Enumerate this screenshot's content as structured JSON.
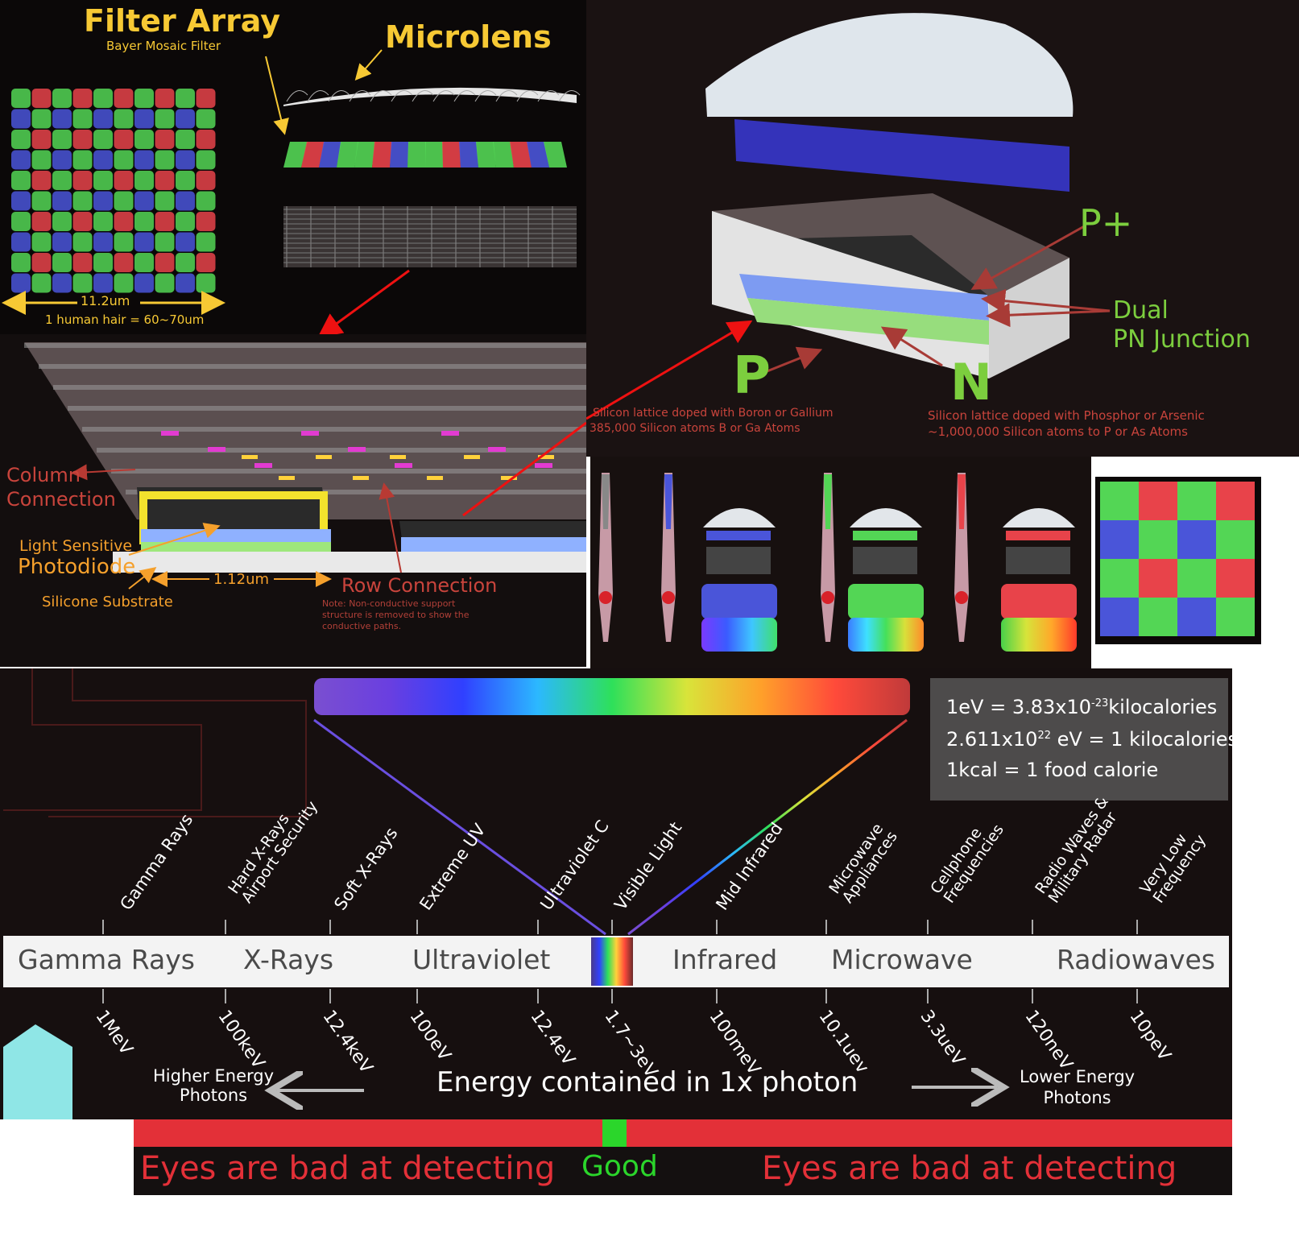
{
  "colors": {
    "red": "#e8434a",
    "green": "#53d655",
    "blue": "#4a55d9",
    "gold": "#f7c934",
    "orange": "#f5a02c",
    "dark_red_text": "#c9443c",
    "bar_red": "#e33038",
    "bar_green": "#2bd62b"
  },
  "filter_panel": {
    "title": "Filter Array",
    "subtitle": "Bayer Mosaic Filter",
    "microlens": "Microlens",
    "size": "11.2um",
    "hair_note": "1 human hair = 60~70um"
  },
  "pixel_panel": {
    "column": "Column\nConnection",
    "light_sensitive": "Light Sensitive",
    "photodiode": "Photodiode",
    "substrate": "Silicone Substrate",
    "pitch": "1.12um",
    "row": "Row Connection",
    "note": "Note: Non-conductive support\nstructure is removed to show the\nconductive paths."
  },
  "junction_panel": {
    "p_plus": "P+",
    "dual": "Dual\nPN Junction",
    "p": "P",
    "n": "N",
    "p_caption_1": "Silicon lattice doped with Boron or Gallium",
    "p_caption_2": "385,000 Silicon atoms B or Ga Atoms",
    "n_caption_1": "Silicon lattice doped with Phosphor or Arsenic",
    "n_caption_2": "~1,000,000 Silicon atoms to P or As Atoms"
  },
  "spectrum": {
    "conversions": [
      "1eV = 3.83x10",
      "-23",
      "kilocalories",
      "2.611x10",
      "22",
      " eV = 1 kilocalories",
      "1kcal = 1 food calorie"
    ],
    "top_labels": [
      {
        "lines": [
          "Gamma Rays"
        ]
      },
      {
        "lines": [
          "Hard X-Rays",
          "Airport Security"
        ]
      },
      {
        "lines": [
          "Soft X-Rays"
        ]
      },
      {
        "lines": [
          "Extreme UV"
        ]
      },
      {
        "lines": [
          "Ultraviolet C"
        ]
      },
      {
        "lines": [
          "Visible Light"
        ]
      },
      {
        "lines": [
          "Mid Infrared"
        ]
      },
      {
        "lines": [
          "Microwave",
          "Appliances"
        ]
      },
      {
        "lines": [
          "Cellphone",
          "Frequencies"
        ]
      },
      {
        "lines": [
          "Radio Waves &",
          "Military Radar"
        ]
      },
      {
        "lines": [
          "Very Low",
          "Frequency"
        ]
      }
    ],
    "band_labels": [
      "Gamma Rays",
      "X-Rays",
      "Ultraviolet",
      "Infrared",
      "Microwave",
      "Radiowaves"
    ],
    "energy_labels": [
      "1MeV",
      "100keV",
      "12.4keV",
      "100eV",
      "12.4eV",
      "1.7~3eV",
      "100meV",
      "10.1uev",
      "3.3ueV",
      "120neV",
      "10peV"
    ],
    "energy_caption": "Energy contained in 1x photon",
    "higher": "Higher Energy\nPhotons",
    "lower": "Lower Energy\nPhotons",
    "bad_left": "Eyes are bad at detecting",
    "good": "Good",
    "bad_right": "Eyes are bad at detecting"
  }
}
